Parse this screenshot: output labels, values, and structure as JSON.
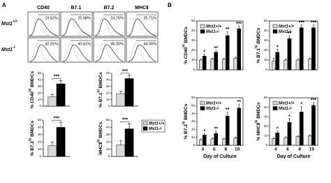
{
  "figure": {
    "panel_a": "A",
    "panel_b": "B",
    "flow": {
      "columns": [
        "CD40",
        "B7.1",
        "B7.2",
        "MHCⅡ"
      ],
      "rows": [
        {
          "label": {
            "name": "Mst1",
            "sup": "+/+"
          },
          "percents": [
            "19.62%",
            "25.98%",
            "24.76%",
            "25.71%"
          ]
        },
        {
          "label": {
            "name": "Mst1",
            "sup": "-/-"
          },
          "percents": [
            "32.01%",
            "40.61%",
            "46.00%",
            "44.06%"
          ]
        }
      ]
    }
  },
  "chart_data": [
    {
      "type": "bar",
      "ylabel": {
        "pre": "% CD40",
        "sup": "hi",
        "post": " BMDCs"
      },
      "categories": [
        null
      ],
      "ylim": [
        0,
        50
      ],
      "yticks": [
        0,
        10,
        20,
        30,
        40,
        50
      ],
      "series": [
        {
          "name": "Mst1+/+",
          "color": "#d9d9d9",
          "values": [
            14
          ],
          "errors": [
            4
          ]
        },
        {
          "name": "Mst1-/-",
          "color": "#000000",
          "values": [
            34
          ],
          "errors": [
            5
          ]
        }
      ],
      "annotations": [
        "***"
      ]
    },
    {
      "type": "bar",
      "ylabel": {
        "pre": "% B7.1",
        "sup": "hi",
        "post": " BMDCs"
      },
      "categories": [
        null
      ],
      "ylim": [
        0,
        50
      ],
      "yticks": [
        0,
        10,
        20,
        30,
        40,
        50
      ],
      "series": [
        {
          "name": "Mst1+/+",
          "color": "#d9d9d9",
          "values": [
            19
          ],
          "errors": [
            4
          ]
        },
        {
          "name": "Mst1-/-",
          "color": "#000000",
          "values": [
            42
          ],
          "errors": [
            5
          ]
        }
      ],
      "annotations": [
        "***"
      ]
    },
    {
      "type": "bar",
      "ylabel": {
        "pre": "% B7.2",
        "sup": "hi",
        "post": " BMDCs"
      },
      "categories": [
        null
      ],
      "ylim": [
        0,
        50
      ],
      "yticks": [
        0,
        10,
        20,
        30,
        40,
        50
      ],
      "series": [
        {
          "name": "Mst1+/+",
          "color": "#d9d9d9",
          "values": [
            15
          ],
          "errors": [
            5
          ]
        },
        {
          "name": "Mst1-/-",
          "color": "#000000",
          "values": [
            40
          ],
          "errors": [
            7
          ]
        }
      ],
      "annotations": [
        "***"
      ]
    },
    {
      "type": "bar",
      "ylabel": {
        "pre": "MHCⅡ",
        "sup": "hi",
        "post": " BMDCs"
      },
      "categories": [
        null
      ],
      "ylim": [
        0,
        50
      ],
      "yticks": [
        0,
        10,
        20,
        30,
        40,
        50
      ],
      "legend": "right",
      "series": [
        {
          "name": "Mst1+/+",
          "color": "#d9d9d9",
          "values": [
            16
          ],
          "errors": [
            6
          ]
        },
        {
          "name": "Mst1-/-",
          "color": "#000000",
          "values": [
            38
          ],
          "errors": [
            7
          ]
        }
      ],
      "annotations": [
        "***"
      ]
    },
    {
      "type": "bar",
      "ylabel": {
        "pre": "% CD40",
        "sup": "hi",
        "post": " BMDCs"
      },
      "categories": [
        null,
        null,
        null,
        null
      ],
      "ylim": [
        0,
        50
      ],
      "yticks": [
        0,
        10,
        20,
        30,
        40,
        50
      ],
      "legend": "upper left",
      "frame": true,
      "series": [
        {
          "name": "Mst1+/+",
          "color": "#d9d9d9",
          "values": [
            10,
            11,
            11,
            12
          ],
          "errors": [
            1,
            1,
            1,
            1
          ]
        },
        {
          "name": "Mst1-/-",
          "color": "#000000",
          "values": [
            14,
            18,
            35,
            42
          ],
          "errors": [
            2,
            2,
            4,
            3
          ]
        }
      ],
      "annotations": [
        "*",
        "**",
        "**",
        "***"
      ]
    },
    {
      "type": "bar",
      "ylabel": {
        "pre": "% B7.1",
        "sup": "hi",
        "post": " BMDCs"
      },
      "categories": [
        null,
        null,
        null,
        null
      ],
      "ylim": [
        0,
        50
      ],
      "yticks": [
        0,
        10,
        20,
        30,
        40,
        50
      ],
      "legend": "upper left",
      "frame": true,
      "series": [
        {
          "name": "Mst1+/+",
          "color": "#d9d9d9",
          "values": [
            9,
            10,
            10,
            11
          ],
          "errors": [
            3,
            1,
            1,
            1
          ]
        },
        {
          "name": "Mst1-/-",
          "color": "#000000",
          "values": [
            18,
            32,
            43,
            43
          ],
          "errors": [
            3,
            3,
            3,
            3
          ]
        }
      ],
      "annotations": [
        "*",
        "**",
        "***",
        "***"
      ]
    },
    {
      "type": "bar",
      "ylabel": {
        "pre": "% B7.2",
        "sup": "hi",
        "post": " BMDCs"
      },
      "categories": [
        4,
        6,
        8,
        10
      ],
      "xlabel": "Day of Culture",
      "ylim": [
        0,
        60
      ],
      "yticks": [
        0,
        10,
        20,
        30,
        40,
        50,
        60
      ],
      "legend": "upper left",
      "frame": true,
      "series": [
        {
          "name": "Mst1+/+",
          "color": "#d9d9d9",
          "values": [
            7,
            8,
            8,
            9
          ],
          "errors": [
            1,
            1,
            1,
            1
          ]
        },
        {
          "name": "Mst1-/-",
          "color": "#000000",
          "values": [
            13,
            15,
            37,
            47
          ],
          "errors": [
            2,
            3,
            5,
            5
          ]
        }
      ],
      "annotations": [
        "*",
        "**",
        "**",
        "**"
      ]
    },
    {
      "type": "bar",
      "ylabel": {
        "pre": "% MHCⅡ",
        "sup": "hi",
        "post": " BMDCs"
      },
      "categories": [
        4,
        6,
        8,
        10
      ],
      "xlabel": "Day of Culture",
      "ylim": [
        0,
        50
      ],
      "yticks": [
        0,
        10,
        20,
        30,
        40,
        50
      ],
      "legend": "upper left",
      "frame": true,
      "series": [
        {
          "name": "Mst1+/+",
          "color": "#d9d9d9",
          "values": [
            7,
            8,
            9,
            10
          ],
          "errors": [
            1,
            1,
            1,
            1
          ]
        },
        {
          "name": "Mst1-/-",
          "color": "#000000",
          "values": [
            13,
            24,
            35,
            42
          ],
          "errors": [
            2,
            4,
            6,
            3
          ]
        }
      ],
      "annotations": [
        "*",
        "*",
        "*",
        "***"
      ]
    }
  ]
}
